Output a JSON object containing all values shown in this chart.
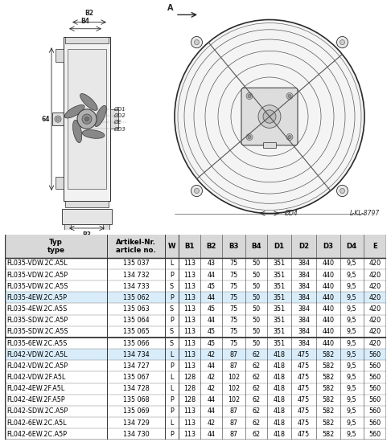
{
  "drawing_label": "L-KL-8797",
  "table_headers": [
    "Typ\ntype",
    "Artikel-Nr.\narticle no.",
    "W",
    "B1",
    "B2",
    "B3",
    "B4",
    "D1",
    "D2",
    "D3",
    "D4",
    "E"
  ],
  "col_widths": [
    1.6,
    0.9,
    0.22,
    0.34,
    0.34,
    0.36,
    0.34,
    0.38,
    0.38,
    0.38,
    0.36,
    0.36
  ],
  "rows": [
    [
      "FL035-VDW.2C.A5L",
      "135 037",
      "L",
      "113",
      "43",
      "75",
      "50",
      "351",
      "384",
      "440",
      "9,5",
      "420"
    ],
    [
      "FL035-VDW.2C.A5P",
      "134 732",
      "P",
      "113",
      "44",
      "75",
      "50",
      "351",
      "384",
      "440",
      "9,5",
      "420"
    ],
    [
      "FL035-VDW.2C.A5S",
      "134 733",
      "S",
      "113",
      "45",
      "75",
      "50",
      "351",
      "384",
      "440",
      "9,5",
      "420"
    ],
    [
      "FL035-4EW.2C.A5P",
      "135 062",
      "P",
      "113",
      "44",
      "75",
      "50",
      "351",
      "384",
      "440",
      "9,5",
      "420"
    ],
    [
      "FL035-4EW.2C.A5S",
      "135 063",
      "S",
      "113",
      "45",
      "75",
      "50",
      "351",
      "384",
      "440",
      "9,5",
      "420"
    ],
    [
      "FL035-SDW.2C.A5P",
      "135 064",
      "P",
      "113",
      "44",
      "75",
      "50",
      "351",
      "384",
      "440",
      "9,5",
      "420"
    ],
    [
      "FL035-SDW.2C.A5S",
      "135 065",
      "S",
      "113",
      "45",
      "75",
      "50",
      "351",
      "384",
      "440",
      "9,5",
      "420"
    ],
    [
      "FL035-6EW.2C.A5S",
      "135 066",
      "S",
      "113",
      "45",
      "75",
      "50",
      "351",
      "384",
      "440",
      "9,5",
      "420"
    ],
    [
      "FL042-VDW.2C.A5L",
      "134 734",
      "L",
      "113",
      "42",
      "87",
      "62",
      "418",
      "475",
      "582",
      "9,5",
      "560"
    ],
    [
      "FL042-VDW.2C.A5P",
      "134 727",
      "P",
      "113",
      "44",
      "87",
      "62",
      "418",
      "475",
      "582",
      "9,5",
      "560"
    ],
    [
      "FL042-VDW.2F.A5L",
      "135 067",
      "L",
      "128",
      "42",
      "102",
      "62",
      "418",
      "475",
      "582",
      "9,5",
      "560"
    ],
    [
      "FL042-4EW.2F.A5L",
      "134 728",
      "L",
      "128",
      "42",
      "102",
      "62",
      "418",
      "475",
      "582",
      "9,5",
      "560"
    ],
    [
      "FL042-4EW.2F.A5P",
      "135 068",
      "P",
      "128",
      "44",
      "102",
      "62",
      "418",
      "475",
      "582",
      "9,5",
      "560"
    ],
    [
      "FL042-SDW.2C.A5P",
      "135 069",
      "P",
      "113",
      "44",
      "87",
      "62",
      "418",
      "475",
      "582",
      "9,5",
      "560"
    ],
    [
      "FL042-6EW.2C.A5L",
      "134 729",
      "L",
      "113",
      "42",
      "87",
      "62",
      "418",
      "475",
      "582",
      "9,5",
      "560"
    ],
    [
      "FL042-6EW.2C.A5P",
      "134 730",
      "P",
      "113",
      "44",
      "87",
      "62",
      "418",
      "475",
      "582",
      "9,5",
      "560"
    ]
  ],
  "highlighted_rows": [
    3,
    8
  ],
  "highlight_color": "#c8e4f8",
  "separator_after_row": 7,
  "bg_color": "#ffffff",
  "table_font_size": 5.8,
  "header_font_size": 6.2
}
